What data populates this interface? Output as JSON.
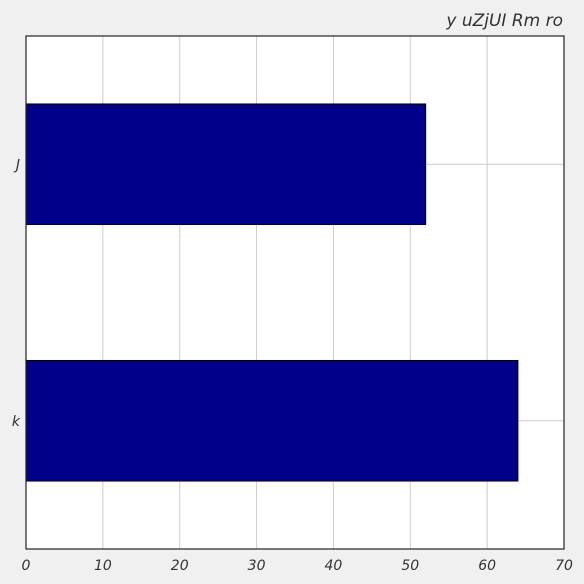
{
  "chart_data": {
    "type": "bar",
    "orientation": "horizontal",
    "title": "y uZjUI Rm ro",
    "xlabel": "",
    "ylabel": "",
    "categories": [
      "k",
      "J"
    ],
    "values": [
      64,
      52
    ],
    "xlim": [
      0,
      70
    ],
    "xticks": [
      0,
      10,
      20,
      30,
      40,
      50,
      60,
      70
    ],
    "grid": true,
    "legend": "none",
    "colors": {
      "bar": "#00008b",
      "bar_edge": "#000000",
      "grid": "#cccccc",
      "plot_background": "#ffffff",
      "figure_background": "#f0f0f0",
      "text": "#333333"
    }
  }
}
